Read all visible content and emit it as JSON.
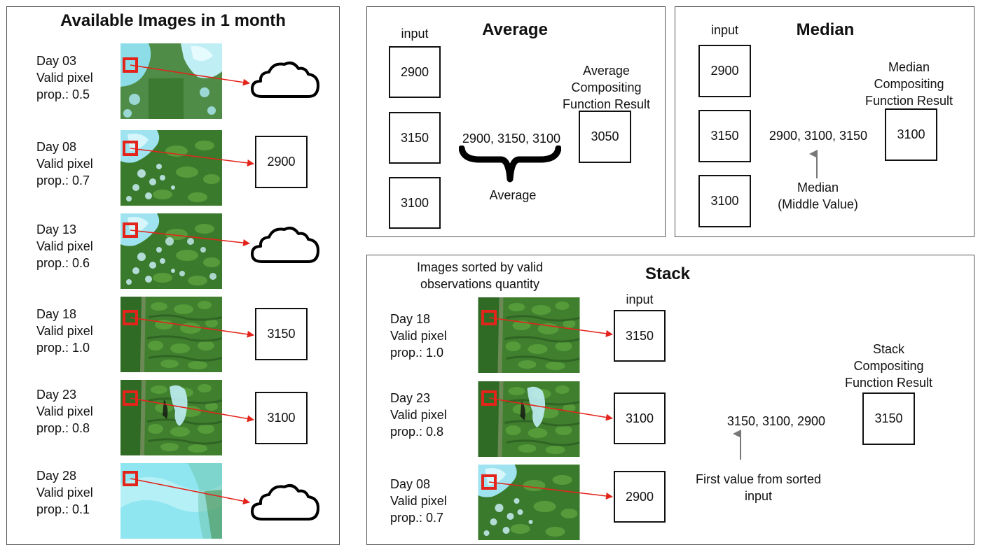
{
  "left_panel": {
    "title": "Available Images in 1 month",
    "rows": [
      {
        "day": "Day 03",
        "line2": "Valid pixel",
        "prop": "prop.: 0.5",
        "result": "",
        "icon": "cloud-icon",
        "scene": "cloudy"
      },
      {
        "day": "Day 08",
        "line2": "Valid pixel",
        "prop": "prop.: 0.7",
        "result": "2900",
        "icon": "",
        "scene": "partly-cloudy"
      },
      {
        "day": "Day 13",
        "line2": "Valid pixel",
        "prop": "prop.: 0.6",
        "result": "",
        "icon": "cloud-icon",
        "scene": "partly-cloudy"
      },
      {
        "day": "Day 18",
        "line2": "Valid pixel",
        "prop": "prop.: 1.0",
        "result": "3150",
        "icon": "",
        "scene": "clear"
      },
      {
        "day": "Day 23",
        "line2": "Valid pixel",
        "prop": "prop.: 0.8",
        "result": "3100",
        "icon": "",
        "scene": "mostly-clear"
      },
      {
        "day": "Day 28",
        "line2": "Valid pixel",
        "prop": "prop.: 0.1",
        "result": "",
        "icon": "cloud-icon",
        "scene": "overcast"
      }
    ]
  },
  "average_panel": {
    "title": "Average",
    "input_label": "input",
    "inputs": [
      "2900",
      "3150",
      "3100"
    ],
    "sequence": "2900, 3150, 3100",
    "operation_label": "Average",
    "result_title": [
      "Average",
      "Compositing",
      "Function Result"
    ],
    "result": "3050"
  },
  "median_panel": {
    "title": "Median",
    "input_label": "input",
    "inputs": [
      "2900",
      "3150",
      "3100"
    ],
    "sequence": "2900, 3100, 3150",
    "operation_label": [
      "Median",
      "(Middle Value)"
    ],
    "result_title": [
      "Median",
      "Compositing",
      "Function Result"
    ],
    "result": "3100"
  },
  "stack_panel": {
    "title": "Stack",
    "sorted_caption": [
      "Images sorted by valid",
      "observations quantity"
    ],
    "input_label": "input",
    "rows": [
      {
        "day": "Day 18",
        "line2": "Valid pixel",
        "prop": "prop.: 1.0",
        "value": "3150",
        "scene": "clear"
      },
      {
        "day": "Day 23",
        "line2": "Valid pixel",
        "prop": "prop.: 0.8",
        "value": "3100",
        "scene": "mostly-clear"
      },
      {
        "day": "Day 08",
        "line2": "Valid pixel",
        "prop": "prop.: 0.7",
        "value": "2900",
        "scene": "partly-cloudy"
      }
    ],
    "sequence": "3150, 3100, 2900",
    "operation_label": [
      "First value from sorted",
      "input"
    ],
    "result_title": [
      "Stack",
      "Compositing",
      "Function Result"
    ],
    "result": "3150"
  },
  "colors": {
    "border": "#555555",
    "box_border": "#111111",
    "pointer_red": "#e3241b",
    "vegetation": "#3f7f2e",
    "cloud_cyan": "#8fe6f0",
    "arrow_gray": "#777777"
  }
}
